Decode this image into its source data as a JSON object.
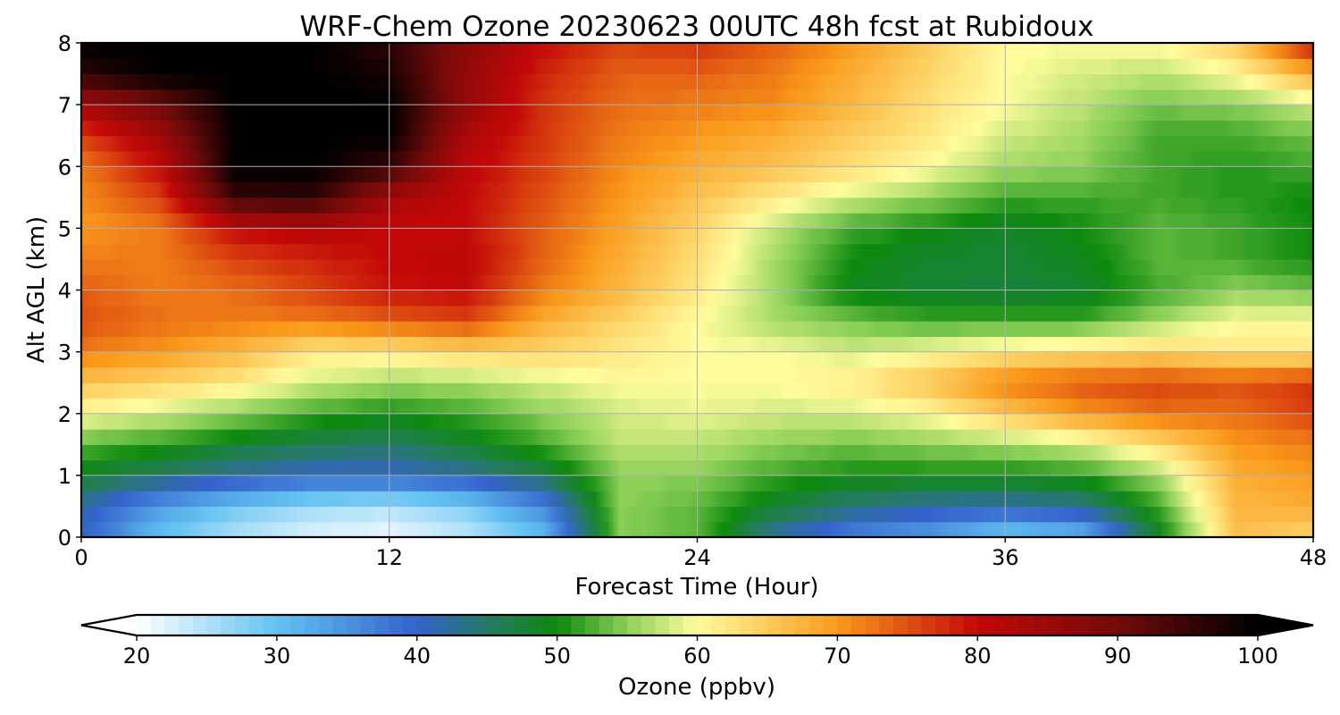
{
  "chart_data": {
    "type": "heatmap",
    "title": "WRF-Chem Ozone  20230623 00UTC 48h fcst at Rubidoux",
    "xlabel": "Forecast Time (Hour)",
    "ylabel": "Alt AGL (km)",
    "xlim": [
      0,
      48
    ],
    "ylim": [
      0,
      8
    ],
    "xticks": [
      0,
      12,
      24,
      36,
      48
    ],
    "yticks": [
      0,
      1,
      2,
      3,
      4,
      5,
      6,
      7,
      8
    ],
    "grid": true,
    "colorbar": {
      "label": "Ozone  (ppbv)",
      "range": [
        20,
        100
      ],
      "ticks": [
        20,
        30,
        40,
        50,
        60,
        70,
        80,
        90,
        100
      ],
      "extend": "both",
      "colormap": [
        {
          "v": 20,
          "c": "#ffffff"
        },
        {
          "v": 30,
          "c": "#62c2f2"
        },
        {
          "v": 40,
          "c": "#3462cc"
        },
        {
          "v": 45,
          "c": "#267a66"
        },
        {
          "v": 50,
          "c": "#0d8a0d"
        },
        {
          "v": 55,
          "c": "#8cd058"
        },
        {
          "v": 60,
          "c": "#fffc9e"
        },
        {
          "v": 70,
          "c": "#fa9a1a"
        },
        {
          "v": 80,
          "c": "#c40808"
        },
        {
          "v": 90,
          "c": "#740a0a"
        },
        {
          "v": 100,
          "c": "#000000"
        }
      ]
    },
    "x": [
      0,
      3,
      6,
      9,
      12,
      15,
      18,
      21,
      24,
      27,
      30,
      33,
      36,
      39,
      42,
      45,
      48
    ],
    "y": [
      0,
      0.5,
      1,
      1.5,
      2,
      2.5,
      3,
      3.5,
      4,
      4.5,
      5,
      5.5,
      6,
      6.5,
      7,
      7.5,
      8
    ],
    "z": [
      [
        40,
        30,
        25,
        22,
        21,
        24,
        30,
        55,
        53,
        42,
        36,
        33,
        28,
        30,
        48,
        66,
        64
      ],
      [
        42,
        34,
        29,
        26,
        25,
        28,
        36,
        55,
        53,
        48,
        44,
        42,
        41,
        43,
        52,
        67,
        68
      ],
      [
        48,
        45,
        42,
        40,
        40,
        42,
        46,
        55,
        55,
        52,
        50,
        50,
        50,
        51,
        56,
        68,
        70
      ],
      [
        53,
        51,
        48,
        46,
        45,
        48,
        52,
        57,
        57,
        55,
        54,
        55,
        56,
        58,
        63,
        70,
        72
      ],
      [
        60,
        58,
        55,
        52,
        50,
        52,
        55,
        58,
        59,
        58,
        58,
        60,
        65,
        70,
        73,
        73,
        76
      ],
      [
        66,
        64,
        62,
        58,
        56,
        56,
        58,
        60,
        60,
        60,
        62,
        66,
        72,
        75,
        76,
        75,
        77
      ],
      [
        72,
        70,
        67,
        62,
        62,
        64,
        64,
        62,
        60,
        60,
        58,
        60,
        62,
        63,
        64,
        62,
        62
      ],
      [
        75,
        73,
        72,
        72,
        74,
        76,
        68,
        64,
        60,
        56,
        54,
        52,
        52,
        52,
        56,
        60,
        60
      ],
      [
        74,
        72,
        73,
        76,
        79,
        80,
        72,
        67,
        62,
        56,
        49,
        48,
        47,
        48,
        52,
        55,
        54
      ],
      [
        72,
        72,
        76,
        78,
        80,
        81,
        74,
        68,
        63,
        56,
        50,
        48,
        48,
        49,
        53,
        52,
        50
      ],
      [
        70,
        72,
        80,
        82,
        80,
        80,
        74,
        69,
        64,
        57,
        52,
        50,
        48,
        50,
        53,
        52,
        50
      ],
      [
        71,
        76,
        95,
        96,
        84,
        80,
        75,
        70,
        66,
        62,
        58,
        55,
        52,
        52,
        52,
        51,
        50
      ],
      [
        72,
        80,
        100,
        100,
        95,
        81,
        76,
        71,
        68,
        66,
        63,
        60,
        56,
        55,
        52,
        51,
        52
      ],
      [
        76,
        84,
        100,
        100,
        100,
        83,
        77,
        72,
        70,
        68,
        65,
        62,
        58,
        56,
        52,
        52,
        54
      ],
      [
        84,
        90,
        100,
        100,
        100,
        86,
        77,
        73,
        72,
        71,
        67,
        63,
        60,
        57,
        54,
        55,
        58
      ],
      [
        96,
        100,
        100,
        100,
        98,
        86,
        78,
        74,
        74,
        72,
        68,
        64,
        60,
        58,
        57,
        60,
        68
      ],
      [
        100,
        100,
        100,
        100,
        96,
        87,
        80,
        76,
        77,
        74,
        70,
        65,
        60,
        60,
        60,
        65,
        80
      ]
    ]
  }
}
